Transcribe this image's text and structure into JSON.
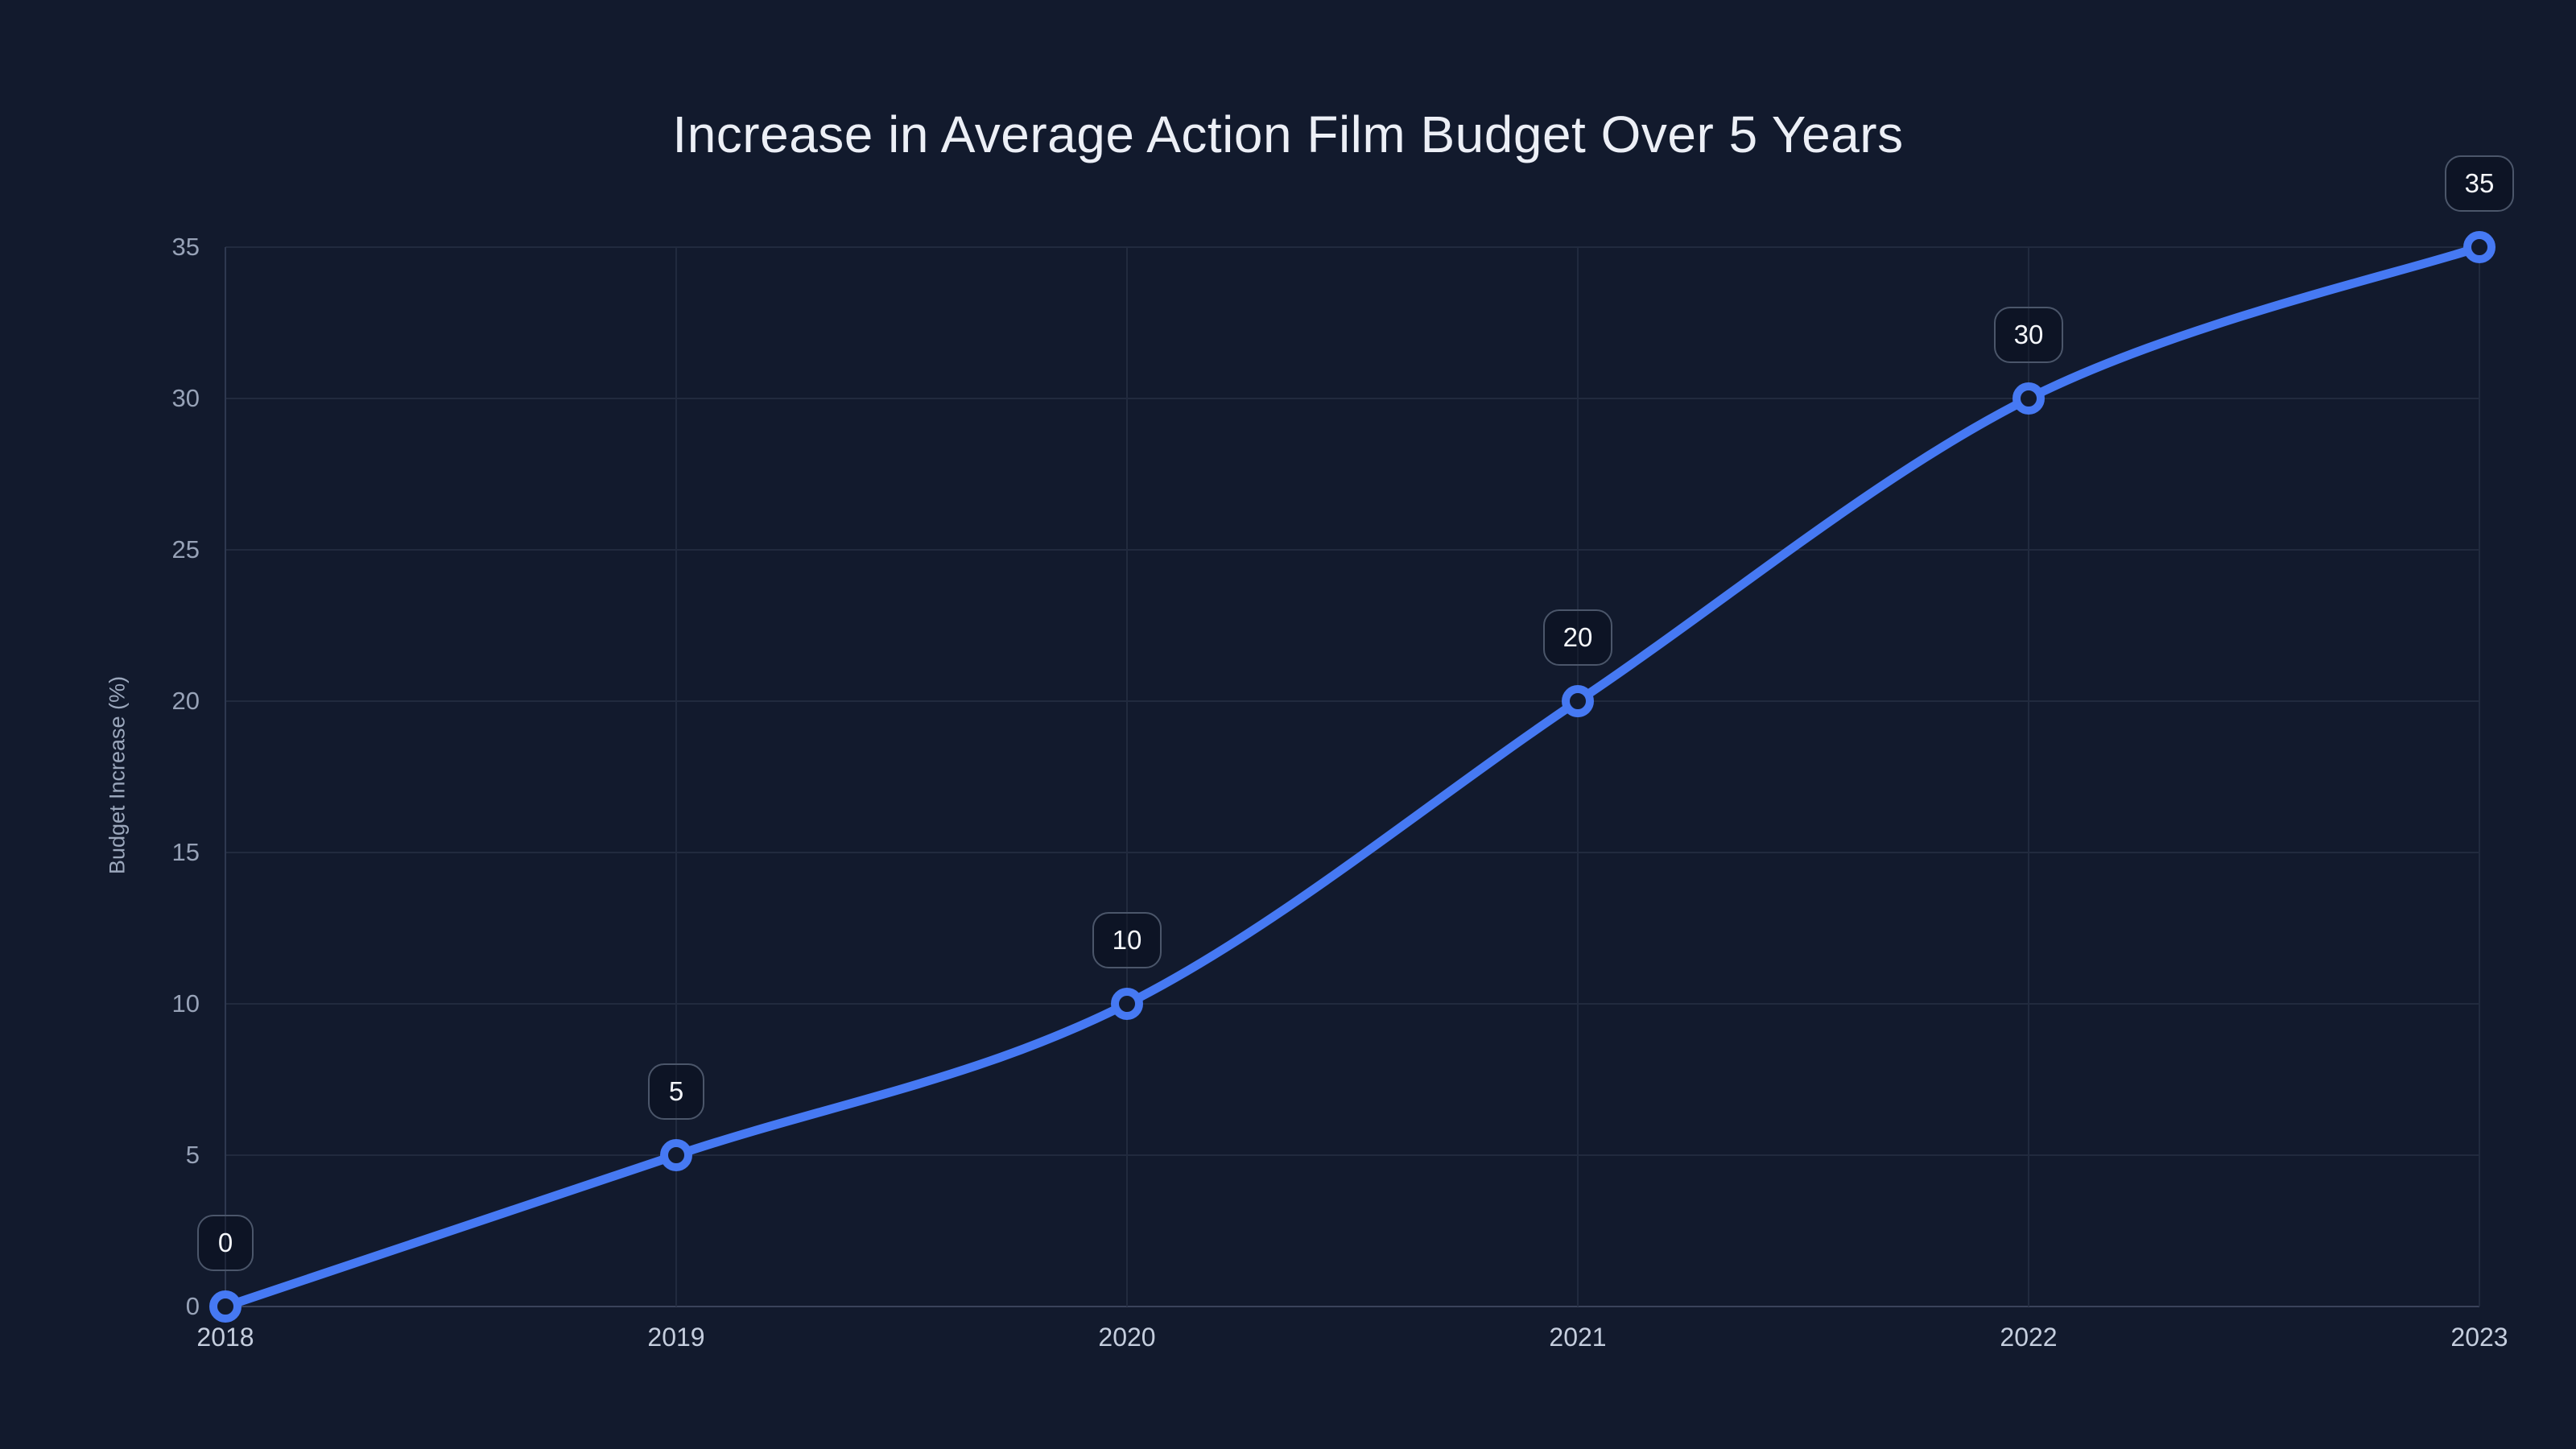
{
  "colors": {
    "background": "#121a2d",
    "line": "#4679f3",
    "marker_fill": "#121a2d",
    "grid": "#212a3e",
    "left_axis": "#2e3850",
    "axis": "#3a435a",
    "title_text": "#eceff6",
    "x_tick_text": "#c5cede",
    "y_tick_text": "#97a2b7",
    "axis_title_text": "#9ba7bc",
    "badge_border": "#4b566a",
    "badge_bg": "rgba(8,13,26,0.4)",
    "badge_text": "#f5f7fb"
  },
  "chart_data": {
    "type": "line",
    "title": "Increase in Average Action Film Budget Over 5 Years",
    "xlabel": "",
    "ylabel": "Budget Increase (%)",
    "categories": [
      "2018",
      "2019",
      "2020",
      "2021",
      "2022",
      "2023"
    ],
    "series": [
      {
        "name": "Budget Increase (%)",
        "values": [
          0,
          5,
          10,
          20,
          30,
          35
        ]
      }
    ],
    "point_labels": [
      "0",
      "5",
      "10",
      "20",
      "30",
      "35"
    ],
    "y_ticks": [
      0,
      5,
      10,
      15,
      20,
      25,
      30,
      35
    ],
    "ylim": [
      0,
      35
    ],
    "grid": true,
    "legend": false,
    "smooth": true,
    "marker_style": "open-circle"
  }
}
